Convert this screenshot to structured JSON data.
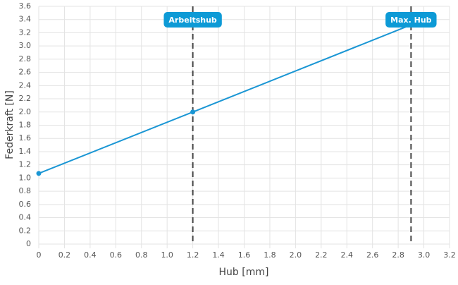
{
  "chart_data": {
    "type": "line",
    "x_label": "Hub [mm]",
    "y_label": "Federkraft [N]",
    "x": [
      0,
      1.2,
      2.9
    ],
    "series": [
      {
        "color": "#1a96d4",
        "values": [
          1.07,
          2.0,
          3.32
        ]
      }
    ],
    "xlim": [
      0,
      3.2
    ],
    "xticks": [
      0,
      0.2,
      0.4,
      0.6,
      0.8,
      {
        "value": 1,
        "label": "1.0"
      },
      1.2,
      1.4,
      1.6,
      1.8,
      {
        "value": 2,
        "label": "2.0"
      },
      2.2,
      2.4,
      2.6,
      2.8,
      {
        "value": 3,
        "label": "3.0"
      },
      3.2
    ],
    "ylim": [
      0,
      3.6
    ],
    "yticks": [
      0,
      0.2,
      0.4,
      0.6,
      0.8,
      {
        "value": 1,
        "label": "1.0"
      },
      1.2,
      1.4,
      1.6,
      1.8,
      {
        "value": 2,
        "label": "2.0"
      },
      2.2,
      2.4,
      2.6,
      2.8,
      {
        "value": 3,
        "label": "3.0"
      },
      3.2,
      3.4,
      3.6
    ],
    "grid": true,
    "annotations": [
      {
        "x": 1.2,
        "label": "Arbeitshub"
      },
      {
        "x": 2.9,
        "label": "Max. Hub"
      }
    ]
  }
}
